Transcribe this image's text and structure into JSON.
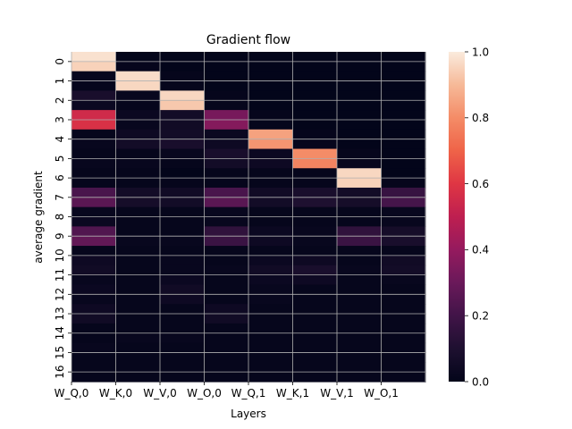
{
  "chart_data": {
    "type": "heatmap",
    "title": "Gradient flow",
    "xlabel": "Layers",
    "ylabel": "average gradient",
    "x_tick_labels": [
      "W_Q,0",
      "W_K,0",
      "W_V,0",
      "W_O,0",
      "W_Q,1",
      "W_K,1",
      "W_V,1",
      "W_O,1"
    ],
    "y_tick_labels": [
      "0",
      "1",
      "2",
      "3",
      "4",
      "5",
      "6",
      "7",
      "8",
      "9",
      "10",
      "11",
      "12",
      "13",
      "14",
      "15",
      "16"
    ],
    "grid": true,
    "colorbar": {
      "range": [
        0.0,
        1.0
      ],
      "ticks": [
        "0.0",
        "0.2",
        "0.4",
        "0.6",
        "0.8",
        "1.0"
      ],
      "colormap": "rocket"
    },
    "rows_per_label": 2,
    "values": [
      [
        0.98,
        0.0,
        0.0,
        0.0,
        0.0,
        0.0,
        0.0,
        0.0
      ],
      [
        0.95,
        0.01,
        0.0,
        0.0,
        0.0,
        0.0,
        0.0,
        0.0
      ],
      [
        0.02,
        0.97,
        0.01,
        0.0,
        0.0,
        0.0,
        0.0,
        0.0
      ],
      [
        0.01,
        0.96,
        0.01,
        0.0,
        0.0,
        0.0,
        0.0,
        0.0
      ],
      [
        0.08,
        0.02,
        0.96,
        0.01,
        0.0,
        0.0,
        0.0,
        0.0
      ],
      [
        0.03,
        0.01,
        0.93,
        0.01,
        0.0,
        0.0,
        0.0,
        0.0
      ],
      [
        0.55,
        0.03,
        0.06,
        0.33,
        0.01,
        0.0,
        0.0,
        0.0
      ],
      [
        0.58,
        0.02,
        0.05,
        0.36,
        0.01,
        0.0,
        0.0,
        0.0
      ],
      [
        0.01,
        0.04,
        0.06,
        0.03,
        0.85,
        0.01,
        0.0,
        0.0
      ],
      [
        0.02,
        0.06,
        0.08,
        0.04,
        0.82,
        0.01,
        0.0,
        0.0
      ],
      [
        0.01,
        0.01,
        0.02,
        0.08,
        0.03,
        0.8,
        0.01,
        0.0
      ],
      [
        0.02,
        0.02,
        0.01,
        0.06,
        0.04,
        0.78,
        0.02,
        0.0
      ],
      [
        0.01,
        0.01,
        0.0,
        0.01,
        0.01,
        0.01,
        0.96,
        0.0
      ],
      [
        0.01,
        0.01,
        0.01,
        0.01,
        0.01,
        0.01,
        0.95,
        0.01
      ],
      [
        0.22,
        0.06,
        0.05,
        0.22,
        0.05,
        0.08,
        0.06,
        0.17
      ],
      [
        0.26,
        0.07,
        0.06,
        0.26,
        0.06,
        0.1,
        0.07,
        0.21
      ],
      [
        0.02,
        0.01,
        0.01,
        0.02,
        0.01,
        0.01,
        0.01,
        0.02
      ],
      [
        0.03,
        0.01,
        0.01,
        0.02,
        0.01,
        0.01,
        0.01,
        0.02
      ],
      [
        0.24,
        0.01,
        0.01,
        0.15,
        0.03,
        0.02,
        0.15,
        0.07
      ],
      [
        0.28,
        0.02,
        0.02,
        0.18,
        0.04,
        0.02,
        0.18,
        0.08
      ],
      [
        0.01,
        0.01,
        0.01,
        0.01,
        0.01,
        0.01,
        0.01,
        0.01
      ],
      [
        0.04,
        0.01,
        0.02,
        0.01,
        0.03,
        0.04,
        0.01,
        0.05
      ],
      [
        0.05,
        0.01,
        0.02,
        0.02,
        0.05,
        0.08,
        0.02,
        0.06
      ],
      [
        0.02,
        0.01,
        0.03,
        0.01,
        0.03,
        0.04,
        0.01,
        0.02
      ],
      [
        0.03,
        0.01,
        0.05,
        0.01,
        0.02,
        0.01,
        0.01,
        0.01
      ],
      [
        0.02,
        0.01,
        0.04,
        0.01,
        0.02,
        0.01,
        0.01,
        0.01
      ],
      [
        0.04,
        0.01,
        0.01,
        0.04,
        0.01,
        0.01,
        0.01,
        0.01
      ],
      [
        0.05,
        0.01,
        0.01,
        0.05,
        0.01,
        0.01,
        0.01,
        0.01
      ],
      [
        0.01,
        0.01,
        0.01,
        0.01,
        0.01,
        0.01,
        0.01,
        0.01
      ],
      [
        0.01,
        0.02,
        0.02,
        0.01,
        0.01,
        0.01,
        0.01,
        0.01
      ],
      [
        0.02,
        0.01,
        0.01,
        0.01,
        0.01,
        0.01,
        0.01,
        0.01
      ],
      [
        0.01,
        0.01,
        0.01,
        0.01,
        0.01,
        0.01,
        0.01,
        0.01
      ],
      [
        0.01,
        0.01,
        0.01,
        0.01,
        0.01,
        0.01,
        0.01,
        0.01
      ],
      [
        0.01,
        0.01,
        0.01,
        0.01,
        0.01,
        0.01,
        0.01,
        0.01
      ]
    ]
  }
}
